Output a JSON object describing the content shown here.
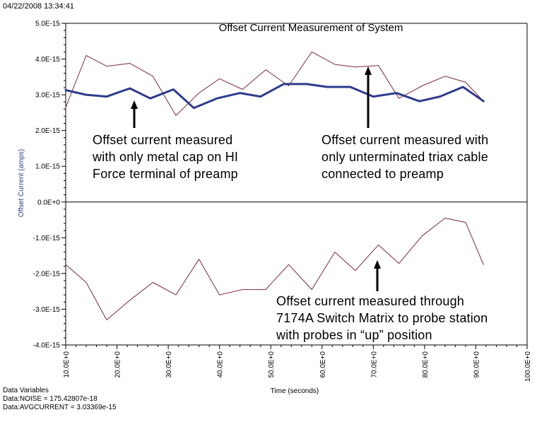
{
  "timestamp": "04/22/2008 13:34:41",
  "chart_data": {
    "type": "line",
    "title": "Offset Current Measurement of System",
    "xlabel": "Time (seconds)",
    "ylabel": "Offset Current (amps)",
    "xlim": [
      10,
      100
    ],
    "ylim": [
      -4e-15,
      5e-15
    ],
    "grid": false,
    "y_ticks": [
      {
        "value": 5e-15,
        "label": "5.0E-15"
      },
      {
        "value": 4e-15,
        "label": "4.0E-15"
      },
      {
        "value": 3e-15,
        "label": "3.0E-15"
      },
      {
        "value": 2e-15,
        "label": "2.0E-15"
      },
      {
        "value": 1e-15,
        "label": "1.0E-15"
      },
      {
        "value": 0,
        "label": "0.0E+0"
      },
      {
        "value": -1e-15,
        "label": "-1.0E-15"
      },
      {
        "value": -2e-15,
        "label": "-2.0E-15"
      },
      {
        "value": -3e-15,
        "label": "-3.0E-15"
      },
      {
        "value": -4e-15,
        "label": "-4.0E-15"
      }
    ],
    "x_ticks": [
      {
        "value": 10,
        "label": "10.0E+0"
      },
      {
        "value": 20,
        "label": "20.0E+0"
      },
      {
        "value": 30,
        "label": "30.0E+0"
      },
      {
        "value": 40,
        "label": "40.0E+0"
      },
      {
        "value": 50,
        "label": "50.0E+0"
      },
      {
        "value": 60,
        "label": "60.0E+0"
      },
      {
        "value": 70,
        "label": "70.0E+0"
      },
      {
        "value": 80,
        "label": "80.0E+0"
      },
      {
        "value": 90,
        "label": "90.0E+0"
      },
      {
        "value": 100,
        "label": "100.0E+0"
      }
    ],
    "series": [
      {
        "color": "#7a2a3a",
        "line_width": 1,
        "points": [
          [
            10,
            2.65e-15
          ],
          [
            14,
            4.1e-15
          ],
          [
            18,
            3.8e-15
          ],
          [
            22.5,
            3.88e-15
          ],
          [
            27,
            3.52e-15
          ],
          [
            31.5,
            2.42e-15
          ],
          [
            36,
            3.05e-15
          ],
          [
            40,
            3.45e-15
          ],
          [
            44.5,
            3.15e-15
          ],
          [
            49,
            3.7e-15
          ],
          [
            53.5,
            3.25e-15
          ],
          [
            58,
            4.2e-15
          ],
          [
            62.5,
            3.85e-15
          ],
          [
            66.5,
            3.78e-15
          ],
          [
            71,
            3.82e-15
          ],
          [
            75,
            2.9e-15
          ],
          [
            79.5,
            3.25e-15
          ],
          [
            84,
            3.52e-15
          ],
          [
            88,
            3.35e-15
          ],
          [
            91.5,
            2.82e-15
          ]
        ]
      },
      {
        "color": "#2e3b8c",
        "line_width": 3,
        "points": [
          [
            10,
            3.13e-15
          ],
          [
            14,
            3e-15
          ],
          [
            18,
            2.95e-15
          ],
          [
            22.5,
            3.18e-15
          ],
          [
            26.5,
            2.9e-15
          ],
          [
            31,
            3.15e-15
          ],
          [
            35,
            2.63e-15
          ],
          [
            39.5,
            2.9e-15
          ],
          [
            44,
            3.05e-15
          ],
          [
            48,
            2.95e-15
          ],
          [
            52.5,
            3.3e-15
          ],
          [
            57,
            3.3e-15
          ],
          [
            61,
            3.22e-15
          ],
          [
            65.5,
            3.22e-15
          ],
          [
            70,
            2.95e-15
          ],
          [
            74.5,
            3.05e-15
          ],
          [
            79,
            2.82e-15
          ],
          [
            83,
            2.95e-15
          ],
          [
            87.5,
            3.22e-15
          ],
          [
            91.5,
            2.82e-15
          ]
        ]
      },
      {
        "color": "#7a2a3a",
        "line_width": 1,
        "points": [
          [
            10,
            -1.75e-15
          ],
          [
            14,
            -2.25e-15
          ],
          [
            18,
            -3.3e-15
          ],
          [
            22.5,
            -2.75e-15
          ],
          [
            27,
            -2.25e-15
          ],
          [
            31.5,
            -2.6e-15
          ],
          [
            36,
            -1.6e-15
          ],
          [
            40,
            -2.6e-15
          ],
          [
            44.5,
            -2.45e-15
          ],
          [
            49,
            -2.45e-15
          ],
          [
            53.5,
            -1.75e-15
          ],
          [
            58,
            -2.45e-15
          ],
          [
            62.5,
            -1.4e-15
          ],
          [
            66.5,
            -1.92e-15
          ],
          [
            71,
            -1.2e-15
          ],
          [
            75,
            -1.72e-15
          ],
          [
            79.5,
            -9.5e-16
          ],
          [
            84,
            -4.5e-16
          ],
          [
            88,
            -5.7e-16
          ],
          [
            91.5,
            -1.75e-15
          ]
        ]
      }
    ],
    "annotations": [
      {
        "lines": [
          "Offset current measured",
          "with only metal cap on HI",
          "Force terminal of preamp"
        ]
      },
      {
        "lines": [
          "Offset current measured with",
          "only unterminated triax cable",
          "connected to preamp"
        ]
      },
      {
        "lines": [
          "Offset current measured through",
          "7174A Switch Matrix to probe station",
          "with probes in “up” position"
        ]
      }
    ]
  },
  "footer": {
    "heading": "Data Variables",
    "noise": "Data:NOISE = 175.42807e-18",
    "avg": "Data:AVGCURRENT = 3.03369e-15"
  }
}
